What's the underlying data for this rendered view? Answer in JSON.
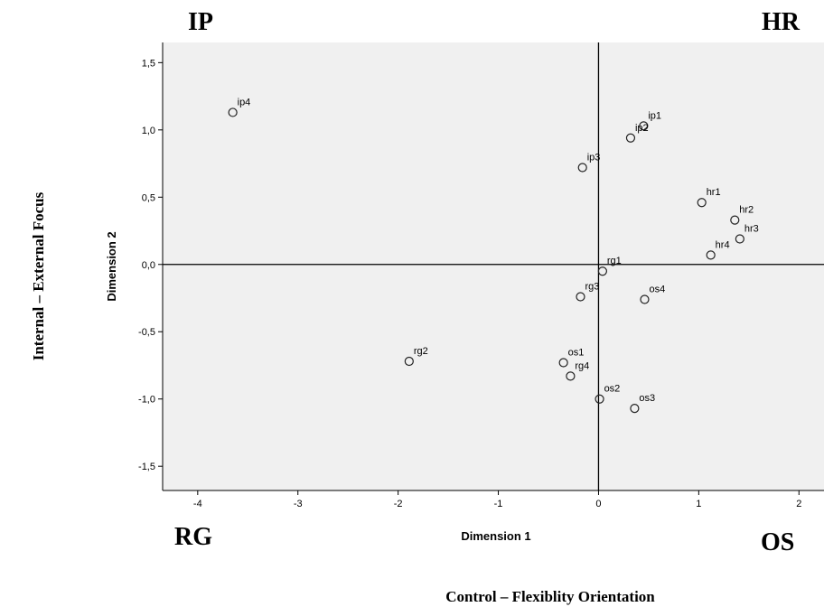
{
  "chart_data": {
    "type": "scatter",
    "xlabel": "Dimension 1",
    "ylabel": "Dimension 2",
    "xlim": [
      -4.35,
      2.25
    ],
    "ylim": [
      -1.68,
      1.65
    ],
    "xticks": [
      "-4",
      "-3",
      "-2",
      "-1",
      "0",
      "1",
      "2"
    ],
    "xtick_values": [
      -4,
      -3,
      -2,
      -1,
      0,
      1,
      2
    ],
    "yticks": [
      "1,5",
      "1,0",
      "0,5",
      "0,0",
      "-0,5",
      "-1,0",
      "-1,5"
    ],
    "ytick_values": [
      1.5,
      1.0,
      0.5,
      0.0,
      -0.5,
      -1.0,
      -1.5
    ],
    "reference_lines": {
      "x": 0,
      "y": 0
    },
    "grid": false,
    "points": [
      {
        "label": "ip4",
        "x": -3.65,
        "y": 1.13
      },
      {
        "label": "ip1",
        "x": 0.45,
        "y": 1.03
      },
      {
        "label": "ip2",
        "x": 0.32,
        "y": 0.94
      },
      {
        "label": "ip3",
        "x": -0.16,
        "y": 0.72
      },
      {
        "label": "hr1",
        "x": 1.03,
        "y": 0.46
      },
      {
        "label": "hr2",
        "x": 1.36,
        "y": 0.33
      },
      {
        "label": "hr3",
        "x": 1.41,
        "y": 0.19
      },
      {
        "label": "hr4",
        "x": 1.12,
        "y": 0.07
      },
      {
        "label": "rg1",
        "x": 0.04,
        "y": -0.05
      },
      {
        "label": "rg3",
        "x": -0.18,
        "y": -0.24
      },
      {
        "label": "os4",
        "x": 0.46,
        "y": -0.26
      },
      {
        "label": "rg2",
        "x": -1.89,
        "y": -0.72
      },
      {
        "label": "os1",
        "x": -0.35,
        "y": -0.73
      },
      {
        "label": "rg4",
        "x": -0.28,
        "y": -0.83
      },
      {
        "label": "os2",
        "x": 0.01,
        "y": -1.0
      },
      {
        "label": "os3",
        "x": 0.36,
        "y": -1.07
      }
    ]
  },
  "quadrant_labels": {
    "top_left": "IP",
    "top_right": "HR",
    "bottom_left": "RG",
    "bottom_right": "OS"
  },
  "outer_titles": {
    "x": "Control – Flexiblity Orientation",
    "y": "Internal – External Focus"
  }
}
